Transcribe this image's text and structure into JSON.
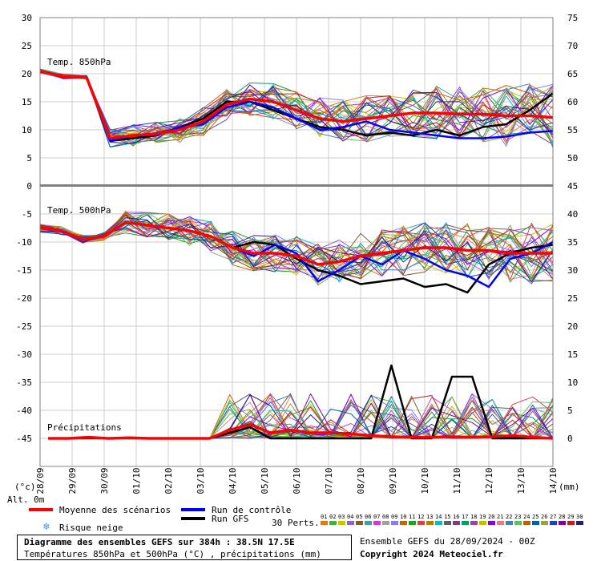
{
  "chart_data": [
    {
      "type": "line",
      "panel": "top",
      "label": "Temp. 850hPa",
      "left_axis_ticks": [
        30,
        25,
        20,
        15,
        10,
        5,
        0
      ],
      "right_axis_ticks": [
        75,
        70,
        65,
        60,
        55,
        50,
        45
      ],
      "series": [
        {
          "name": "Moyenne des scénarios",
          "color": "#ff0000",
          "values": [
            20.5,
            19.5,
            19.3,
            8.5,
            9.0,
            9.3,
            10.0,
            11.5,
            14.5,
            15.5,
            15.0,
            13.5,
            12.0,
            11.5,
            12.0,
            12.5,
            13.0,
            13.0,
            12.8,
            12.8,
            12.5,
            12.5,
            12.2
          ]
        },
        {
          "name": "Run de contrôle",
          "color": "#0000ff",
          "values": [
            20.5,
            19.5,
            19.3,
            8.0,
            9.0,
            9.0,
            10.5,
            11.0,
            14.0,
            15.0,
            14.0,
            12.0,
            10.0,
            10.5,
            11.5,
            10.0,
            9.5,
            9.0,
            8.5,
            8.5,
            8.8,
            9.5,
            9.8
          ]
        },
        {
          "name": "Run GFS",
          "color": "#000000",
          "values": [
            20.5,
            19.5,
            19.3,
            8.0,
            8.5,
            9.0,
            10.5,
            12.0,
            15.0,
            15.0,
            13.5,
            12.0,
            10.5,
            10.0,
            9.0,
            9.5,
            9.0,
            10.0,
            9.0,
            10.5,
            11.0,
            13.5,
            16.5
          ]
        }
      ]
    },
    {
      "type": "line",
      "panel": "bottom",
      "label_500": "Temp. 500hPa",
      "label_precip": "Précipitations",
      "left_axis_ticks": [
        -5,
        -10,
        -15,
        -20,
        -25,
        -30,
        -35,
        -40,
        -45
      ],
      "right_axis_ticks": [
        40,
        35,
        30,
        25,
        20,
        15,
        10,
        5,
        0
      ],
      "x_tick_labels": [
        "28/09",
        "29/09",
        "30/09",
        "01/10",
        "02/10",
        "03/10",
        "04/10",
        "05/10",
        "06/10",
        "07/10",
        "08/10",
        "09/10",
        "10/10",
        "11/10",
        "12/10",
        "13/10",
        "14/10"
      ],
      "series_500hPa": [
        {
          "name": "Moyenne des scénarios",
          "color": "#ff0000",
          "values": [
            -7.5,
            -8.0,
            -9.5,
            -9.0,
            -6.5,
            -7.0,
            -7.5,
            -8.0,
            -9.0,
            -11.0,
            -12.0,
            -12.0,
            -12.5,
            -14.0,
            -13.5,
            -12.5,
            -12.0,
            -11.5,
            -11.0,
            -11.0,
            -11.5,
            -11.5,
            -12.0,
            -12.0,
            -12.0
          ]
        },
        {
          "name": "Run de contrôle",
          "color": "#0000ff",
          "values": [
            -7.5,
            -8.0,
            -9.5,
            -9.0,
            -6.5,
            -7.0,
            -7.5,
            -8.0,
            -9.0,
            -11.0,
            -12.5,
            -10.5,
            -12.0,
            -17.0,
            -15.0,
            -12.5,
            -14.0,
            -11.5,
            -13.0,
            -15.0,
            -16.0,
            -18.0,
            -13.0,
            -12.0,
            -10.0
          ]
        },
        {
          "name": "Run GFS",
          "color": "#000000",
          "values": [
            -7.5,
            -8.0,
            -9.5,
            -9.0,
            -6.5,
            -7.0,
            -7.5,
            -8.0,
            -9.0,
            -11.0,
            -10.0,
            -10.5,
            -13.0,
            -15.0,
            -16.0,
            -17.5,
            -17.0,
            -16.5,
            -18.0,
            -17.5,
            -19.0,
            -14.0,
            -12.0,
            -11.0,
            -10.5
          ]
        }
      ],
      "series_precip_mm": [
        {
          "name": "Moyenne des scénarios",
          "color": "#ff0000",
          "values": [
            0,
            0,
            0.2,
            0,
            0.1,
            0,
            0,
            0,
            0,
            1.5,
            2.5,
            1.0,
            1.5,
            1.0,
            1.0,
            0.8,
            0.5,
            0.3,
            0.2,
            0.2,
            0.3,
            0.2,
            0.3,
            0.5,
            0.2,
            0
          ]
        },
        {
          "name": "Run GFS",
          "color": "#000000",
          "values": [
            0,
            0,
            0,
            0,
            0,
            0,
            0,
            0,
            0,
            1.0,
            2.0,
            0,
            0,
            0,
            0,
            0,
            0,
            13,
            0,
            0,
            11,
            11,
            0,
            0,
            0,
            0
          ]
        }
      ]
    }
  ],
  "legend": {
    "mean": "Moyenne des scénarios",
    "control": "Run de contrôle",
    "gfs": "Run GFS",
    "snow": "Risque neige",
    "perts": "30 Perts.",
    "unit_left": "(°c)",
    "unit_right": "(mm)",
    "alt": "Alt. 0m",
    "colors": {
      "mean": "#ff0000",
      "control": "#0000ff",
      "gfs": "#000000",
      "snow": "#3399ff"
    }
  },
  "footer": {
    "title": "Diagramme des ensembles GEFS sur 384h : 38.5N 17.5E",
    "subtitle": "Températures 850hPa et 500hPa (°C) , précipitations (mm)",
    "ensemble": "Ensemble GEFS du 28/09/2024 - 00Z",
    "copyright": "Copyright 2024 Meteociel.fr"
  },
  "perturbations": {
    "labels": [
      "01",
      "02",
      "03",
      "04",
      "05",
      "06",
      "07",
      "08",
      "09",
      "10",
      "11",
      "12",
      "13",
      "14",
      "15",
      "16",
      "17",
      "18",
      "19",
      "20",
      "21",
      "22",
      "23",
      "24",
      "25",
      "26",
      "27",
      "28",
      "29",
      "30"
    ],
    "colors": [
      "#e07820",
      "#40b040",
      "#c8c800",
      "#9060d0",
      "#806030",
      "#40a0a0",
      "#d040d0",
      "#a0a0a0",
      "#8080ff",
      "#c86400",
      "#20a020",
      "#e04040",
      "#b08000",
      "#00c0c0",
      "#606060",
      "#804080",
      "#00a060",
      "#a040a0",
      "#c0c000",
      "#8000ff",
      "#e08080",
      "#4080c0",
      "#60c060",
      "#c06000",
      "#0060a0",
      "#a0a040",
      "#2040c0",
      "#8000a0",
      "#c02020",
      "#202080"
    ]
  }
}
